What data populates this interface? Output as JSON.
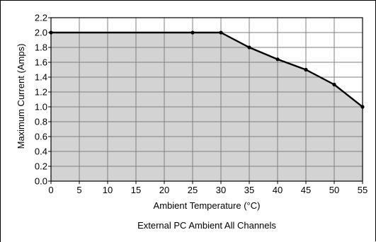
{
  "chart_data": {
    "type": "area",
    "title": "",
    "caption": "External PC Ambient All Channels",
    "xlabel": "Ambient Temperature (°C)",
    "ylabel": "Maximum Current (Amps)",
    "xlim": [
      0,
      55
    ],
    "ylim": [
      0,
      2.2
    ],
    "xticks": [
      0,
      5,
      10,
      15,
      20,
      25,
      30,
      35,
      40,
      45,
      50,
      55
    ],
    "yticks": [
      0.0,
      0.2,
      0.4,
      0.6,
      0.8,
      1.0,
      1.2,
      1.4,
      1.6,
      1.8,
      2.0,
      2.2
    ],
    "x_tick_labels": [
      "0",
      "5",
      "10",
      "15",
      "20",
      "25",
      "30",
      "35",
      "40",
      "45",
      "50",
      "55"
    ],
    "y_tick_labels": [
      "0.0",
      "0.2",
      "0.4",
      "0.6",
      "0.8",
      "1.0",
      "1.2",
      "1.4",
      "1.6",
      "1.8",
      "2.0",
      "2.2"
    ],
    "grid": true,
    "series": [
      {
        "x": [
          0,
          25,
          30,
          35,
          40,
          45,
          50,
          55
        ],
        "y": [
          2.0,
          2.0,
          2.0,
          1.8,
          1.64,
          1.5,
          1.3,
          1.0
        ]
      }
    ],
    "colors": {
      "fill": "#d3d3d3",
      "line": "#000000",
      "grid": "#7f7f7f"
    }
  }
}
